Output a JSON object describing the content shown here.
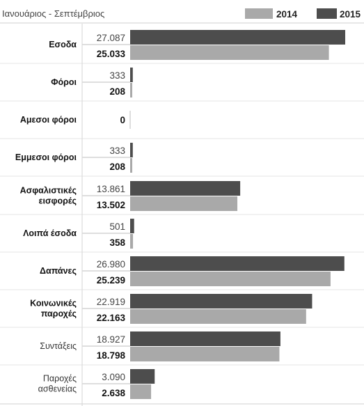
{
  "chart_data": {
    "type": "bar",
    "title": "Ιανουάριος - Σεπτέμβριος",
    "legend_placement": "top-right",
    "series": [
      {
        "name": "2015",
        "color": "#4d4d4d",
        "values": [
          27087,
          333,
          0,
          333,
          13861,
          501,
          26980,
          22919,
          18927,
          3090
        ],
        "labels": [
          "27.087",
          "333",
          "",
          "333",
          "13.861",
          "501",
          "26.980",
          "22.919",
          "18.927",
          "3.090"
        ]
      },
      {
        "name": "2014",
        "color": "#a9a9a9",
        "values": [
          25033,
          208,
          0,
          208,
          13502,
          358,
          25239,
          22163,
          18798,
          2638
        ],
        "labels": [
          "25.033",
          "208",
          "0",
          "208",
          "13.502",
          "358",
          "25.239",
          "22.163",
          "18.798",
          "2.638"
        ]
      }
    ],
    "categories": [
      {
        "lines": [
          "Εσοδα"
        ],
        "bold": true
      },
      {
        "lines": [
          "Φόροι"
        ],
        "bold": true
      },
      {
        "lines": [
          "Αμεσοι φόροι"
        ],
        "bold": true
      },
      {
        "lines": [
          "Εμμεσοι φόροι"
        ],
        "bold": true
      },
      {
        "lines": [
          "Ασφαλιστικές",
          "εισφορές"
        ],
        "bold": true
      },
      {
        "lines": [
          "Λοιπά έσοδα"
        ],
        "bold": true
      },
      {
        "lines": [
          "Δαπάνες"
        ],
        "bold": true
      },
      {
        "lines": [
          "Κοινωνικές",
          "παροχές"
        ],
        "bold": true
      },
      {
        "lines": [
          "Συντάξεις"
        ],
        "bold": false
      },
      {
        "lines": [
          "Παροχές",
          "ασθενείας"
        ],
        "bold": false
      }
    ],
    "xlim": [
      0,
      28000
    ],
    "grid": false
  }
}
